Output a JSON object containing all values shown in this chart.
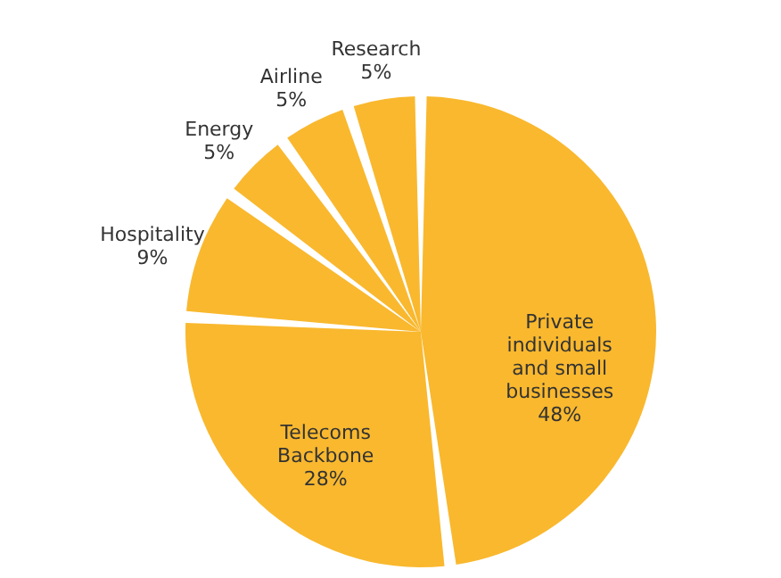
{
  "chart_data": {
    "type": "pie",
    "categories": [
      "Private individuals and small businesses",
      "Telecoms Backbone",
      "Hospitality",
      "Energy",
      "Airline",
      "Research"
    ],
    "values": [
      48,
      28,
      9,
      5,
      5,
      5
    ],
    "value_labels": [
      "48%",
      "28%",
      "9%",
      "5%",
      "5%",
      "5%"
    ],
    "colors": [
      "#f9b82e",
      "#f9b82e",
      "#f9b82e",
      "#f9b82e",
      "#f9b82e",
      "#f9b82e"
    ]
  }
}
